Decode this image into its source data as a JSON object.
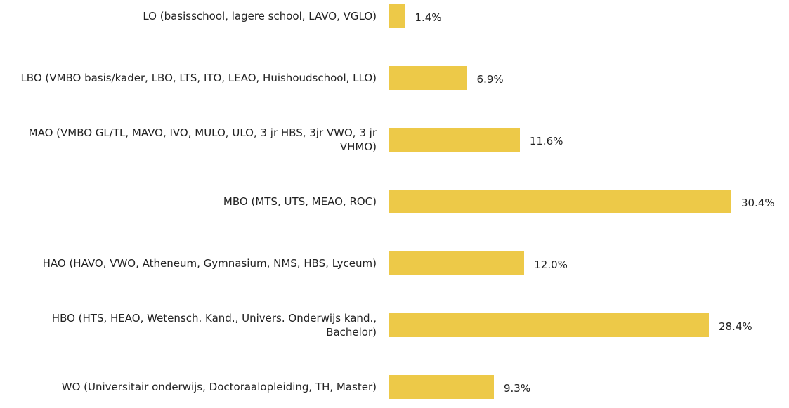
{
  "chart_data": {
    "type": "hbar",
    "categories": [
      "LO (basisschool, lagere school, LAVO, VGLO)",
      "LBO (VMBO basis/kader, LBO, LTS, ITO, LEAO, Huishoudschool, LLO)",
      "MAO (VMBO GL/TL, MAVO, IVO, MULO, ULO, 3 jr HBS, 3jr VWO, 3 jr VHMO)",
      "MBO (MTS, UTS, MEAO, ROC)",
      "HAO (HAVO, VWO, Atheneum, Gymnasium, NMS, HBS, Lyceum)",
      "HBO (HTS, HEAO, Wetensch. Kand., Univers. Onderwijs kand., Bachelor)",
      "WO (Universitair onderwijs, Doctoraalopleiding, TH, Master)"
    ],
    "values": [
      1.4,
      6.9,
      11.6,
      30.4,
      12.0,
      28.4,
      9.3
    ],
    "value_labels": [
      "1.4%",
      "6.9%",
      "11.6%",
      "30.4%",
      "12.0%",
      "28.4%",
      "9.3%"
    ],
    "color": "#edc948"
  }
}
